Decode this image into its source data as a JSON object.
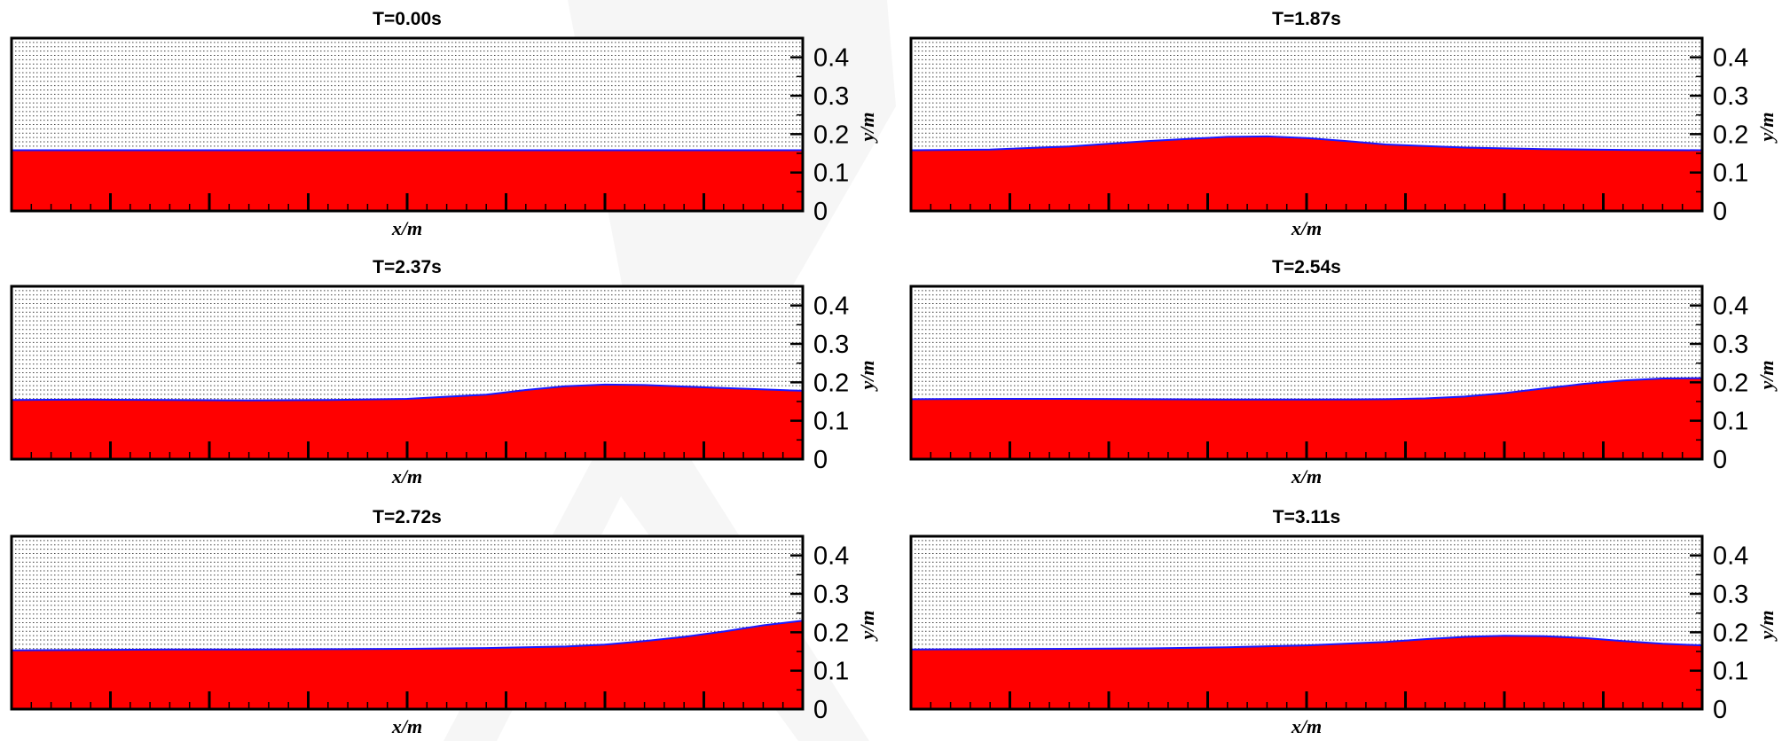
{
  "colors": {
    "water": "#ff0000",
    "free_surface": "#1a1aff",
    "frame": "#000000",
    "grid": "#000000",
    "background": "#ffffff",
    "watermark": "#eeeeee"
  },
  "chart_data": [
    {
      "type": "area",
      "title": "T=0.00s",
      "xlabel": "x/m",
      "ylabel": "y/m",
      "xlim": [
        0,
        1
      ],
      "ylim": [
        0,
        0.45
      ],
      "yticks": [
        "0",
        "0.1",
        "0.2",
        "0.3",
        "0.4"
      ],
      "y_tick_values": [
        0,
        0.1,
        0.2,
        0.3,
        0.4
      ],
      "grid": "horizontal-dotted",
      "series": [
        {
          "x": [
            0.0,
            0.1,
            0.2,
            0.3,
            0.4,
            0.5,
            0.6,
            0.7,
            0.8,
            0.9,
            1.0
          ],
          "y": [
            0.158,
            0.158,
            0.158,
            0.158,
            0.158,
            0.158,
            0.158,
            0.158,
            0.158,
            0.158,
            0.158
          ]
        }
      ]
    },
    {
      "type": "area",
      "title": "T=1.87s",
      "xlabel": "x/m",
      "ylabel": "y/m",
      "xlim": [
        0,
        1
      ],
      "ylim": [
        0,
        0.45
      ],
      "yticks": [
        "0",
        "0.1",
        "0.2",
        "0.3",
        "0.4"
      ],
      "y_tick_values": [
        0,
        0.1,
        0.2,
        0.3,
        0.4
      ],
      "grid": "horizontal-dotted",
      "series": [
        {
          "x": [
            0.0,
            0.1,
            0.2,
            0.3,
            0.4,
            0.45,
            0.5,
            0.55,
            0.6,
            0.7,
            0.8,
            0.9,
            1.0
          ],
          "y": [
            0.158,
            0.16,
            0.168,
            0.182,
            0.193,
            0.194,
            0.19,
            0.182,
            0.173,
            0.165,
            0.161,
            0.159,
            0.158
          ]
        }
      ]
    },
    {
      "type": "area",
      "title": "T=2.37s",
      "xlabel": "x/m",
      "ylabel": "y/m",
      "xlim": [
        0,
        1
      ],
      "ylim": [
        0,
        0.45
      ],
      "yticks": [
        "0",
        "0.1",
        "0.2",
        "0.3",
        "0.4"
      ],
      "y_tick_values": [
        0,
        0.1,
        0.2,
        0.3,
        0.4
      ],
      "grid": "horizontal-dotted",
      "series": [
        {
          "x": [
            0.0,
            0.1,
            0.2,
            0.3,
            0.4,
            0.5,
            0.6,
            0.65,
            0.7,
            0.75,
            0.8,
            0.85,
            0.9,
            1.0
          ],
          "y": [
            0.154,
            0.155,
            0.154,
            0.153,
            0.154,
            0.157,
            0.168,
            0.18,
            0.19,
            0.194,
            0.193,
            0.189,
            0.185,
            0.178
          ]
        }
      ]
    },
    {
      "type": "area",
      "title": "T=2.54s",
      "xlabel": "x/m",
      "ylabel": "y/m",
      "xlim": [
        0,
        1
      ],
      "ylim": [
        0,
        0.45
      ],
      "yticks": [
        "0",
        "0.1",
        "0.2",
        "0.3",
        "0.4"
      ],
      "y_tick_values": [
        0,
        0.1,
        0.2,
        0.3,
        0.4
      ],
      "grid": "horizontal-dotted",
      "series": [
        {
          "x": [
            0.0,
            0.1,
            0.2,
            0.3,
            0.4,
            0.5,
            0.6,
            0.65,
            0.7,
            0.75,
            0.8,
            0.85,
            0.9,
            0.95,
            1.0
          ],
          "y": [
            0.156,
            0.157,
            0.157,
            0.156,
            0.155,
            0.155,
            0.156,
            0.158,
            0.163,
            0.172,
            0.184,
            0.196,
            0.205,
            0.21,
            0.211
          ]
        }
      ]
    },
    {
      "type": "area",
      "title": "T=2.72s",
      "xlabel": "x/m",
      "ylabel": "y/m",
      "xlim": [
        0,
        1
      ],
      "ylim": [
        0,
        0.45
      ],
      "yticks": [
        "0",
        "0.1",
        "0.2",
        "0.3",
        "0.4"
      ],
      "y_tick_values": [
        0,
        0.1,
        0.2,
        0.3,
        0.4
      ],
      "grid": "horizontal-dotted",
      "series": [
        {
          "x": [
            0.0,
            0.1,
            0.2,
            0.3,
            0.4,
            0.5,
            0.6,
            0.7,
            0.75,
            0.8,
            0.85,
            0.9,
            0.95,
            1.0
          ],
          "y": [
            0.153,
            0.154,
            0.155,
            0.155,
            0.156,
            0.157,
            0.159,
            0.163,
            0.168,
            0.177,
            0.188,
            0.202,
            0.218,
            0.23
          ]
        }
      ]
    },
    {
      "type": "area",
      "title": "T=3.11s",
      "xlabel": "x/m",
      "ylabel": "y/m",
      "xlim": [
        0,
        1
      ],
      "ylim": [
        0,
        0.45
      ],
      "yticks": [
        "0",
        "0.1",
        "0.2",
        "0.3",
        "0.4"
      ],
      "y_tick_values": [
        0,
        0.1,
        0.2,
        0.3,
        0.4
      ],
      "grid": "horizontal-dotted",
      "series": [
        {
          "x": [
            0.0,
            0.1,
            0.2,
            0.3,
            0.4,
            0.5,
            0.6,
            0.65,
            0.7,
            0.75,
            0.8,
            0.85,
            0.9,
            0.95,
            1.0
          ],
          "y": [
            0.155,
            0.156,
            0.157,
            0.158,
            0.161,
            0.166,
            0.175,
            0.182,
            0.188,
            0.191,
            0.19,
            0.185,
            0.177,
            0.17,
            0.166
          ]
        }
      ]
    }
  ]
}
